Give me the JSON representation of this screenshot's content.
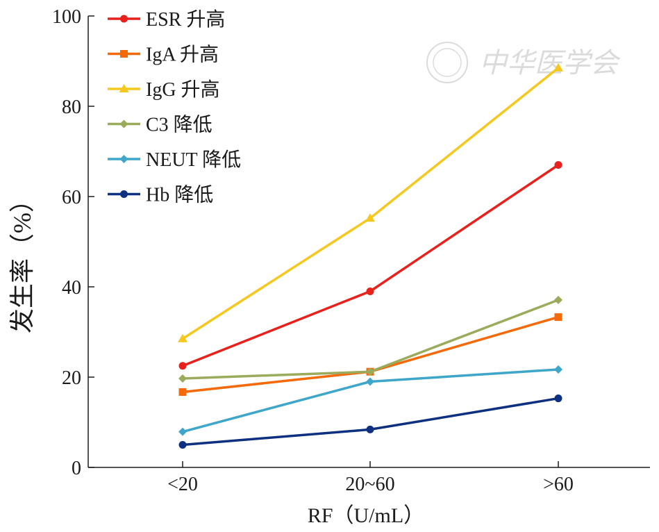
{
  "chart_data": {
    "type": "line",
    "categories": [
      "<20",
      "20~60",
      ">60"
    ],
    "xlabel": "RF（U/mL）",
    "ylabel": "发生率（%）",
    "ylim": [
      0,
      100
    ],
    "yticks": [
      0,
      20,
      40,
      60,
      80,
      100
    ],
    "grid": false,
    "legend_position": "top-left",
    "series": [
      {
        "name": "ESR 升高",
        "values": [
          22.5,
          39,
          67
        ],
        "color": "#e8211c",
        "marker": "circle"
      },
      {
        "name": "IgA 升高",
        "values": [
          16.7,
          21.2,
          33.3
        ],
        "color": "#f46a0a",
        "marker": "square"
      },
      {
        "name": "IgG 升高",
        "values": [
          28.5,
          55.2,
          88.5
        ],
        "color": "#f5c81e",
        "marker": "triangle"
      },
      {
        "name": "C3 降低",
        "values": [
          19.7,
          21.2,
          37.1
        ],
        "color": "#9aab5c",
        "marker": "diamond"
      },
      {
        "name": "NEUT 降低",
        "values": [
          7.9,
          19.0,
          21.7
        ],
        "color": "#3ea6c9",
        "marker": "diamond"
      },
      {
        "name": "Hb 降低",
        "values": [
          5.0,
          8.4,
          15.3
        ],
        "color": "#0e3080",
        "marker": "circle"
      }
    ]
  },
  "watermark": {
    "text": "中华医学会"
  }
}
